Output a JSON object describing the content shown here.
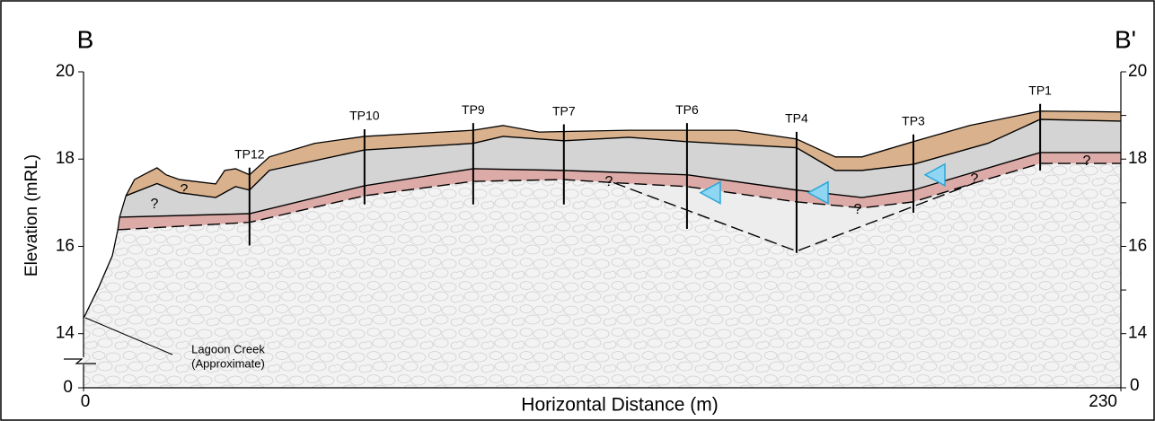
{
  "chart_data": {
    "type": "section",
    "section_labels": [
      "B",
      "B'"
    ],
    "xlabel": "Horizontal Distance (m)",
    "ylabel": "Elevation (mRL)",
    "xlim": [
      0,
      230
    ],
    "xticks": [
      0,
      230
    ],
    "ylim": [
      13.5,
      20
    ],
    "yticks": [
      14,
      16,
      18,
      20
    ],
    "yminorticks": [
      15,
      17,
      19
    ],
    "y_base_tick": 0,
    "bedrock_color": "#f3f3f3",
    "boundaries": [
      {
        "dashed": false,
        "x": [
          0,
          3.4,
          6.4,
          7.6,
          8.0,
          9.4,
          11.3,
          13.3,
          16.3,
          18.3,
          21.3,
          29.3,
          31.3,
          33.7,
          36.8,
          41.2,
          51.2,
          62.3,
          86.4,
          93.0,
          101.0,
          120.9,
          144.8,
          158.1,
          166.7,
          172.6,
          184.0,
          196.5,
          212.1,
          230
        ],
        "y": [
          14.35,
          15.07,
          15.79,
          16.38,
          16.67,
          17.16,
          17.53,
          17.64,
          17.8,
          17.64,
          17.53,
          17.43,
          17.74,
          17.78,
          17.64,
          18.05,
          18.36,
          18.52,
          18.66,
          18.77,
          18.62,
          18.66,
          18.66,
          18.46,
          18.05,
          18.05,
          18.4,
          18.77,
          19.1,
          19.08
        ]
      },
      {
        "dashed": false,
        "x": [
          9.4,
          16.3,
          21.3,
          29.3,
          33.7,
          36.8,
          41.2,
          62.3,
          86.4,
          93.0,
          106.5,
          120.9,
          133.8,
          158.1,
          166.7,
          172.6,
          184.0,
          200.5,
          212.1,
          230
        ],
        "y": [
          17.16,
          17.44,
          17.23,
          17.12,
          17.37,
          17.29,
          17.74,
          18.21,
          18.36,
          18.52,
          18.42,
          18.5,
          18.4,
          18.26,
          17.74,
          17.74,
          17.88,
          18.36,
          18.91,
          18.87
        ]
      },
      {
        "dashed": false,
        "x": [
          8.0,
          36.8,
          62.3,
          86.4,
          106.5,
          133.8,
          158.1,
          172.6,
          184.0,
          212.1,
          230
        ],
        "y": [
          16.67,
          16.75,
          17.39,
          17.78,
          17.74,
          17.64,
          17.29,
          17.12,
          17.29,
          18.15,
          18.15
        ]
      },
      {
        "dashed": true,
        "x": [
          7.6,
          36.8,
          62.3,
          86.4,
          106.5,
          117.5,
          133.8,
          158.1,
          172.6,
          184.0,
          197.5,
          212.1,
          230
        ],
        "y": [
          16.38,
          16.55,
          17.16,
          17.49,
          17.53,
          17.46,
          17.37,
          17.02,
          16.88,
          17.02,
          17.45,
          17.9,
          17.9
        ]
      },
      {
        "dashed": true,
        "x": [
          117.5,
          158.1,
          197.5
        ],
        "y": [
          17.46,
          15.89,
          17.45
        ]
      }
    ],
    "layers": [
      {
        "top": 0,
        "bottom": 3,
        "color": "#dcaaa7"
      },
      {
        "top": 0,
        "bottom": 2,
        "color": "#d4d4d4"
      },
      {
        "top": 0,
        "bottom": 1,
        "color": "#d9b18c"
      },
      {
        "top": 3,
        "bottom": 4,
        "color": "#ededed"
      }
    ],
    "test_pits": [
      {
        "name": "TP12",
        "x": 36.8,
        "bottom": 16.02
      },
      {
        "name": "TP10",
        "x": 62.3,
        "bottom": 16.96
      },
      {
        "name": "TP9",
        "x": 86.4,
        "bottom": 16.96
      },
      {
        "name": "TP7",
        "x": 106.5,
        "bottom": 16.96
      },
      {
        "name": "TP6",
        "x": 133.8,
        "bottom": 16.4
      },
      {
        "name": "TP4",
        "x": 158.1,
        "bottom": 15.85
      },
      {
        "name": "TP3",
        "x": 184.0,
        "bottom": 16.77
      },
      {
        "name": "TP1",
        "x": 212.1,
        "bottom": 17.74
      }
    ],
    "water_levels": {
      "color": "#8fd6f3",
      "x": [
        136.8,
        160.7,
        186.6
      ],
      "y": [
        17.23,
        17.23,
        17.64
      ]
    },
    "query_marks": [
      "?",
      "?",
      "?",
      "?",
      "?",
      "?"
    ],
    "annotation": [
      "Lagoon Creek",
      "(Approximate)"
    ]
  }
}
